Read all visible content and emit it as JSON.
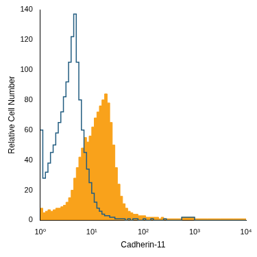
{
  "chart_data": {
    "type": "histogram",
    "xlabel": "Cadherin-11",
    "ylabel": "Relative Cell Number",
    "log": "x",
    "grid": false,
    "xlim": [
      1,
      10000
    ],
    "xticks": [
      {
        "value": 1,
        "label": "10⁰"
      },
      {
        "value": 10,
        "label": "10¹"
      },
      {
        "value": 100,
        "label": "10²"
      },
      {
        "value": 1000,
        "label": "10³"
      },
      {
        "value": 10000,
        "label": "10⁴"
      }
    ],
    "ylim": [
      0,
      140
    ],
    "yticks": [
      0,
      20,
      40,
      60,
      80,
      100,
      120,
      140
    ],
    "bins": [
      1,
      1.12,
      1.26,
      1.41,
      1.58,
      1.78,
      2.0,
      2.24,
      2.51,
      2.82,
      3.16,
      3.55,
      3.98,
      4.47,
      5.01,
      5.62,
      6.31,
      7.08,
      7.94,
      8.91,
      10,
      11.2,
      12.6,
      14.1,
      15.8,
      17.8,
      20.0,
      22.4,
      25.1,
      28.2,
      31.6,
      35.5,
      39.8,
      44.7,
      50.1,
      56.2,
      63.1,
      70.8,
      79.4,
      89.1,
      100,
      112,
      126,
      141,
      158,
      178,
      200,
      224,
      251,
      282,
      316,
      562,
      1000,
      1778,
      3162,
      5623,
      10000
    ],
    "series": [
      {
        "type": "area",
        "color": "#f9a21b",
        "values": [
          8,
          5,
          6,
          7,
          6,
          7,
          8,
          8,
          9,
          10,
          12,
          15,
          20,
          28,
          35,
          42,
          48,
          55,
          52,
          56,
          62,
          68,
          72,
          76,
          80,
          84,
          78,
          65,
          50,
          35,
          24,
          16,
          11,
          8,
          6,
          5,
          4,
          4,
          3,
          3,
          3,
          2,
          2,
          2,
          2,
          2,
          1,
          2,
          1,
          1,
          1,
          2,
          1,
          1,
          1,
          1
        ]
      },
      {
        "type": "line",
        "color": "#215c80",
        "line_style": "solid",
        "values": [
          60,
          28,
          32,
          38,
          45,
          50,
          58,
          65,
          72,
          82,
          92,
          105,
          122,
          137,
          105,
          80,
          60,
          45,
          34,
          25,
          18,
          12,
          8,
          6,
          4,
          3,
          3,
          2,
          2,
          1,
          1,
          1,
          1,
          0,
          1,
          0,
          1,
          1,
          0,
          0,
          1,
          0,
          0,
          1,
          0,
          0,
          0,
          0,
          1,
          0,
          0,
          2,
          0,
          0,
          0,
          0
        ]
      }
    ]
  }
}
